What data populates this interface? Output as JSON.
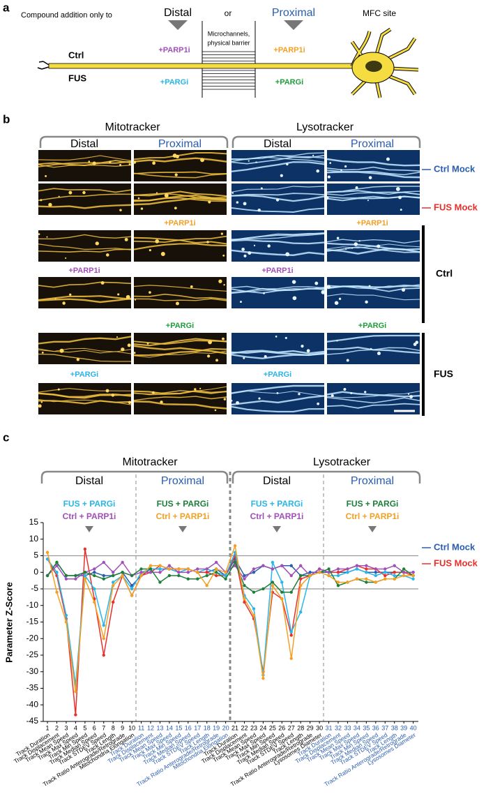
{
  "panel_a": {
    "label": "a",
    "intro": "Compound addition only to",
    "distal": "Distal",
    "or": "or",
    "proximal": "Proximal",
    "site": "MFC site",
    "ctrl": "Ctrl",
    "fus": "FUS",
    "barrier": [
      "Microchannels,",
      "physical barrier"
    ],
    "distal_parp1i": "+PARP1i",
    "distal_pargi": "+PARGi",
    "proximal_parp1i": "+PARP1i",
    "proximal_pargi": "+PARGi"
  },
  "panel_b": {
    "label": "b",
    "groups": [
      "Mitotracker",
      "Lysotracker"
    ],
    "columns": [
      "Distal",
      "Proximal",
      "Distal",
      "Proximal"
    ],
    "mock_labels": [
      "Ctrl Mock",
      "FUS Mock"
    ],
    "distal_parp1i": "+PARP1i",
    "proximal_parp1i": "+PARP1i",
    "distal_pargi": "+PARGi",
    "proximal_pargi": "+PARGi",
    "row_groups": [
      "Ctrl",
      "FUS"
    ]
  },
  "chart_data": {
    "type": "line",
    "label": "c",
    "groups": [
      "Mitotracker",
      "Lysotracker"
    ],
    "regions": [
      "Distal",
      "Proximal"
    ],
    "y_label": "Parameter Z-Score",
    "x": [
      1,
      2,
      3,
      4,
      5,
      6,
      7,
      8,
      9,
      10,
      11,
      12,
      13,
      14,
      15,
      16,
      17,
      18,
      19,
      20,
      21,
      22,
      23,
      24,
      25,
      26,
      27,
      28,
      29,
      30,
      31,
      32,
      33,
      34,
      35,
      36,
      37,
      38,
      39,
      40
    ],
    "xlim": [
      0.55,
      40.55
    ],
    "xticks": [
      1,
      2,
      3,
      4,
      5,
      6,
      7,
      8,
      9,
      10,
      11,
      12,
      13,
      14,
      15,
      16,
      17,
      18,
      19,
      20,
      21,
      22,
      23,
      24,
      25,
      26,
      27,
      28,
      29,
      30,
      31,
      32,
      33,
      34,
      35,
      36,
      37,
      38,
      39,
      40
    ],
    "categories": [
      "Track Duration",
      "Track Displacement",
      "Track Mean Speed",
      "Track Max Speed",
      "Track Min Speed",
      "Track Median Speed",
      "Track STDEV Speed",
      "Track Length",
      "Track Ratio Anterograde/Retrograde",
      "Mitochondria Elongation",
      "Track Duration",
      "Track Displacement",
      "Track Mean Speed",
      "Track Max Speed",
      "Track Min Speed",
      "Track Median Speed",
      "Track STDEV Speed",
      "Track Length",
      "Track Ratio Anterograde/Retrograde",
      "Mitochondria Elongation",
      "Track Duration",
      "Track Displacement",
      "Track Mean Speed",
      "Track Max Speed",
      "Track Min Speed",
      "Track Median Speed",
      "Track STDEV Speed",
      "Track Length",
      "Track Ratio Anterograde/Retrograde",
      "Lysosomes Diameter",
      "Track Duration",
      "Track Displacement",
      "Track Mean Speed",
      "Track Max Speed",
      "Track Min Speed",
      "Track Median Speed",
      "Track STDEV Speed",
      "Track Length",
      "Track Ratio Anterograde/Retrograde",
      "Lysosomes Diameter"
    ],
    "category_label_colors": [
      "#000000",
      "#2a5db0",
      "#000000",
      "#2a5db0"
    ],
    "ylim": [
      -45,
      15
    ],
    "yticks": [
      15,
      10,
      5,
      0,
      -5,
      -10,
      -15,
      -20,
      -25,
      -30,
      -35,
      -40,
      -45
    ],
    "hlines": [
      5,
      -5
    ],
    "series": [
      {
        "name": "Ctrl Mock",
        "color": "#2a5db0",
        "values": [
          -1,
          3,
          -1,
          -1,
          -1,
          0,
          -1,
          -1,
          0,
          -4,
          -1,
          1,
          1,
          1,
          1,
          1,
          0,
          0,
          1,
          -1,
          4,
          -1,
          0,
          2,
          1,
          2,
          2,
          -1,
          0,
          0,
          0,
          0,
          0,
          1,
          0,
          0,
          0,
          0,
          0,
          0
        ]
      },
      {
        "name": "FUS Mock",
        "color": "#e8302a",
        "values": [
          4,
          -1,
          -14,
          -43,
          7,
          -8,
          -25,
          -9,
          -1,
          -7,
          -1,
          0,
          2,
          1,
          1,
          1,
          0,
          0,
          -1,
          -1,
          5,
          -9,
          -14,
          -30,
          -6,
          -8,
          -19,
          -2,
          -1,
          1,
          0,
          0,
          1,
          2,
          1,
          1,
          -1,
          0,
          0,
          -1
        ]
      },
      {
        "name": "FUS + PARGi",
        "color": "#29b5e8",
        "values": [
          4,
          0,
          -13,
          -34,
          -1,
          -5,
          -16,
          -3,
          -1,
          -5,
          0,
          1,
          1,
          1,
          0,
          1,
          0,
          1,
          0,
          -1,
          6,
          -7,
          -11,
          -31,
          3,
          -3,
          -18,
          -12,
          -1,
          0,
          -1,
          -1,
          0,
          1,
          0,
          -1,
          0,
          -1,
          -1,
          -2
        ]
      },
      {
        "name": "Ctrl + PARP1i",
        "color": "#a050b8",
        "values": [
          -1,
          2,
          -2,
          -2,
          0,
          1,
          3,
          0,
          3,
          -1,
          0,
          0,
          0,
          2,
          0,
          0,
          1,
          1,
          3,
          0,
          2,
          -2,
          1,
          2,
          1,
          2,
          -1,
          2,
          -1,
          1,
          0,
          1,
          1,
          2,
          2,
          1,
          1,
          2,
          0,
          0
        ]
      },
      {
        "name": "FUS + PARGi",
        "color": "#1e7e3a",
        "values": [
          -1,
          3,
          -1,
          -1,
          0,
          -1,
          -2,
          -1,
          0,
          -1,
          1,
          1,
          -3,
          -1,
          -1,
          -2,
          -2,
          -1,
          0,
          -2,
          3,
          -4,
          -6,
          -5,
          -3,
          -6,
          -6,
          -1,
          -1,
          0,
          1,
          -4,
          -3,
          -2,
          -3,
          -3,
          -2,
          -2,
          1,
          -1
        ]
      },
      {
        "name": "Ctrl + PARP1i",
        "color": "#f5a024",
        "values": [
          6,
          -6,
          -15,
          -36,
          -2,
          -9,
          -20,
          -4,
          -1,
          -7,
          -1,
          2,
          2,
          1,
          1,
          1,
          0,
          -4,
          1,
          0,
          8,
          -8,
          -13,
          -32,
          -4,
          -8,
          -26,
          -4,
          -1,
          0,
          -1,
          -3,
          -3,
          -2,
          -2,
          -3,
          -2,
          -2,
          -1,
          -1
        ]
      }
    ]
  }
}
